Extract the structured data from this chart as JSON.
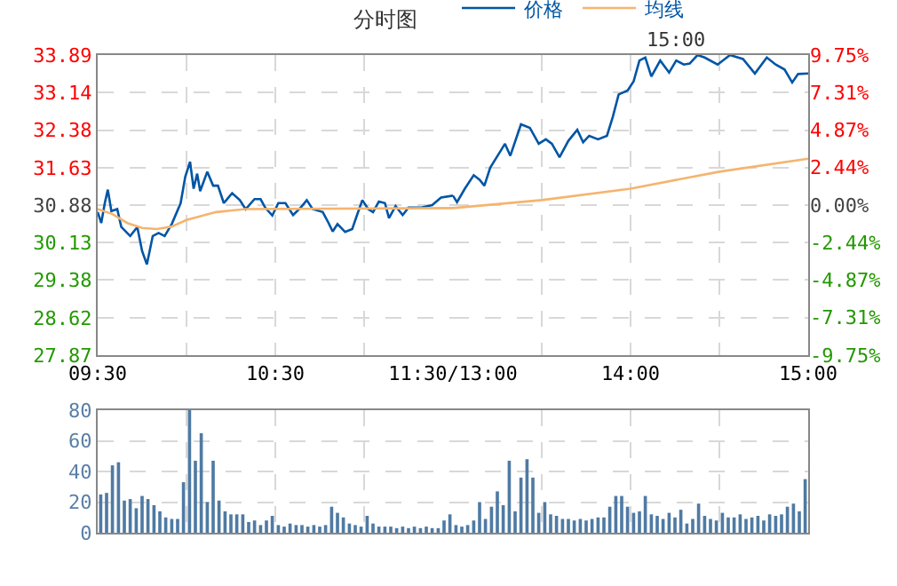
{
  "chart_data": [
    {
      "type": "line",
      "title": "分时图",
      "grid": true,
      "xlim": [
        9.5,
        11.5
      ],
      "xticks": [
        {
          "value": 9.5,
          "label": "09:30"
        },
        {
          "value": 10,
          "label": null
        },
        {
          "value": 10.5,
          "label": "10:30"
        },
        {
          "value": 11,
          "label": null
        },
        {
          "value": 11.5,
          "label": "11:30/13:00"
        }
      ],
      "ylim": [
        27.87,
        33.89
      ],
      "yticks": [
        27.87,
        28.62,
        29.38,
        30.13,
        30.88,
        31.63,
        32.38,
        33.14,
        33.89
      ],
      "series": [
        {
          "color": "#0055a5",
          "x": [
            9.5,
            9.52,
            9.54,
            9.557,
            9.577,
            9.61,
            9.633,
            9.683,
            9.723,
            9.75,
            9.777,
            9.81,
            9.843,
            9.877,
            9.917,
            9.967,
            9.993,
            10.02,
            10.04,
            10.06,
            10.077,
            10.117,
            10.15,
            10.177,
            10.21,
            10.257,
            10.3,
            10.333,
            10.383,
            10.417,
            10.443,
            10.483,
            10.517,
            10.557,
            10.6,
            10.643,
            10.677,
            10.71,
            10.767,
            10.8,
            10.823,
            10.85,
            10.893,
            10.933,
            10.96,
            10.99,
            11.023,
            11.05,
            11.083,
            11.117,
            11.14,
            11.177,
            11.217,
            11.25,
            11.323,
            11.383,
            11.433,
            11.5
          ],
          "values": [
            30.74,
            30.52,
            30.92,
            31.19,
            30.76,
            30.8,
            30.44,
            30.26,
            30.44,
            29.96,
            29.69,
            30.26,
            30.32,
            30.26,
            30.5,
            30.92,
            31.45,
            31.75,
            31.21,
            31.51,
            31.16,
            31.55,
            31.27,
            31.27,
            30.92,
            31.12,
            30.98,
            30.8,
            31,
            31,
            30.83,
            30.67,
            30.92,
            30.92,
            30.68,
            30.83,
            30.98,
            30.8,
            30.74,
            30.52,
            30.35,
            30.5,
            30.34,
            30.4,
            30.68,
            30.98,
            30.8,
            30.74,
            30.95,
            30.92,
            30.62,
            30.86,
            30.68,
            30.83,
            30.83,
            30.88,
            31.03,
            31.07
          ]
        },
        {
          "color": "#f5b46e",
          "x": [
            9.5,
            9.583,
            9.667,
            9.75,
            9.833,
            9.917,
            10,
            10.167,
            10.333,
            11.5
          ],
          "values": [
            30.8,
            30.7,
            30.52,
            30.42,
            30.4,
            30.45,
            30.58,
            30.74,
            30.8,
            30.82
          ]
        }
      ]
    },
    {
      "type": "line",
      "annotations": [
        "15:00"
      ],
      "legend": "top left",
      "grid": true,
      "tick_labels": "x",
      "xlim": [
        13,
        15
      ],
      "xticks": [
        {
          "value": 13.5,
          "label": null
        },
        {
          "value": 14,
          "label": "14:00"
        },
        {
          "value": 14.5,
          "label": null
        },
        {
          "value": 15,
          "label": "15:00"
        }
      ],
      "ylim": [
        27.87,
        33.89
      ],
      "yticks": [
        27.87,
        28.62,
        29.38,
        30.13,
        30.88,
        31.63,
        32.38,
        33.14,
        33.89
      ],
      "y2lim": [
        -9.75,
        9.75
      ],
      "y2ticks": [
        {
          "value": -9.75,
          "label": "-9.75%"
        },
        {
          "value": -7.31,
          "label": "-7.31%"
        },
        {
          "value": -4.87,
          "label": "-4.87%"
        },
        {
          "value": -2.44,
          "label": "-2.44%"
        },
        {
          "value": 0,
          "label": "0.00%"
        },
        {
          "value": 2.44,
          "label": "2.44%"
        },
        {
          "value": 4.87,
          "label": "4.87%"
        },
        {
          "value": 7.31,
          "label": "7.31%"
        },
        {
          "value": 9.75,
          "label": "9.75%"
        }
      ],
      "series": [
        {
          "name": "价格",
          "color": "#0055a5",
          "x": [
            13,
            13.023,
            13.067,
            13.117,
            13.15,
            13.177,
            13.21,
            13.267,
            13.293,
            13.323,
            13.383,
            13.433,
            13.483,
            13.523,
            13.557,
            13.6,
            13.65,
            13.7,
            13.733,
            13.767,
            13.817,
            13.867,
            13.9,
            13.933,
            13.983,
            14.017,
            14.05,
            14.083,
            14.117,
            14.167,
            14.217,
            14.257,
            14.3,
            14.333,
            14.377,
            14.417,
            14.49,
            14.56,
            14.633,
            14.7,
            14.767,
            14.817,
            14.867,
            14.91,
            14.943,
            15
          ],
          "values": [
            31.07,
            30.94,
            31.21,
            31.48,
            31.39,
            31.27,
            31.63,
            31.96,
            32.11,
            31.87,
            32.5,
            32.43,
            32.11,
            32.2,
            32.11,
            31.84,
            32.17,
            32.39,
            32.14,
            32.27,
            32.2,
            32.27,
            32.65,
            33.1,
            33.18,
            33.36,
            33.78,
            33.84,
            33.46,
            33.78,
            33.54,
            33.78,
            33.7,
            33.72,
            33.89,
            33.84,
            33.7,
            33.89,
            33.81,
            33.52,
            33.84,
            33.7,
            33.6,
            33.34,
            33.51,
            33.52
          ]
        },
        {
          "name": "均线",
          "color": "#f5b46e",
          "x": [
            13,
            13.5,
            14,
            14.5,
            15
          ],
          "values": [
            30.82,
            30.98,
            31.21,
            31.55,
            31.81
          ]
        }
      ]
    },
    {
      "type": "bar",
      "grid": true,
      "tick_labels": "y",
      "xlim": [
        9.5,
        11.5
      ],
      "xticks": [
        {
          "value": 10,
          "label": null
        },
        {
          "value": 10.5,
          "label": null
        },
        {
          "value": 11,
          "label": null
        }
      ],
      "ylim": [
        0,
        80
      ],
      "yticks": [
        0,
        20,
        40,
        60,
        80
      ],
      "color": "#4f7aa3",
      "x": [
        9.517,
        9.55,
        9.583,
        9.617,
        9.65,
        9.683,
        9.717,
        9.75,
        9.783,
        9.817,
        9.85,
        9.883,
        9.917,
        9.95,
        9.983,
        10.017,
        10.05,
        10.083,
        10.117,
        10.15,
        10.183,
        10.217,
        10.25,
        10.283,
        10.317,
        10.35,
        10.383,
        10.417,
        10.45,
        10.483,
        10.517,
        10.55,
        10.583,
        10.617,
        10.65,
        10.683,
        10.717,
        10.75,
        10.783,
        10.817,
        10.85,
        10.883,
        10.917,
        10.95,
        10.983,
        11.017,
        11.05,
        11.083,
        11.117,
        11.15,
        11.183,
        11.217,
        11.25,
        11.283,
        11.317,
        11.35,
        11.383,
        11.417,
        11.45,
        11.483
      ],
      "values": [
        25,
        26,
        44,
        46,
        21,
        22,
        16,
        24,
        22,
        18,
        14,
        10,
        9,
        9,
        33,
        80,
        47,
        65,
        20,
        47,
        21,
        14,
        12,
        12,
        12,
        7,
        8,
        5,
        8,
        11,
        5,
        4,
        6,
        5,
        5,
        4,
        5,
        4,
        5,
        17,
        13,
        10,
        6,
        5,
        4,
        11,
        6,
        4,
        4,
        4,
        3,
        4,
        3,
        4,
        3,
        4,
        3,
        3,
        8,
        12
      ]
    },
    {
      "type": "bar",
      "grid": true,
      "tick_labels": false,
      "xlim": [
        13,
        15
      ],
      "xticks": [
        {
          "value": 13.5,
          "label": null
        },
        {
          "value": 14,
          "label": null
        },
        {
          "value": 14.5,
          "label": null
        }
      ],
      "ylim": [
        0,
        80
      ],
      "yticks": [
        0,
        20,
        40,
        60,
        80
      ],
      "color": "#4f7aa3",
      "x": [
        13.017,
        13.05,
        13.083,
        13.117,
        13.15,
        13.183,
        13.217,
        13.25,
        13.283,
        13.317,
        13.35,
        13.383,
        13.417,
        13.45,
        13.483,
        13.517,
        13.55,
        13.583,
        13.617,
        13.65,
        13.683,
        13.717,
        13.75,
        13.783,
        13.817,
        13.85,
        13.883,
        13.917,
        13.95,
        13.983,
        14.017,
        14.05,
        14.083,
        14.117,
        14.15,
        14.183,
        14.217,
        14.25,
        14.283,
        14.317,
        14.35,
        14.383,
        14.417,
        14.45,
        14.483,
        14.517,
        14.55,
        14.583,
        14.617,
        14.65,
        14.683,
        14.717,
        14.75,
        14.783,
        14.817,
        14.85,
        14.883,
        14.917,
        14.95,
        14.983
      ],
      "values": [
        5,
        4,
        5,
        8,
        20,
        9,
        17,
        27,
        18,
        47,
        14,
        36,
        48,
        36,
        13,
        20,
        12,
        11,
        9,
        9,
        8,
        9,
        8,
        9,
        10,
        10,
        17,
        24,
        24,
        17,
        13,
        14,
        24,
        12,
        11,
        9,
        13,
        10,
        15,
        6,
        9,
        19,
        11,
        9,
        8,
        13,
        10,
        10,
        12,
        9,
        10,
        11,
        8,
        12,
        11,
        12,
        17,
        19,
        14,
        35
      ]
    }
  ]
}
